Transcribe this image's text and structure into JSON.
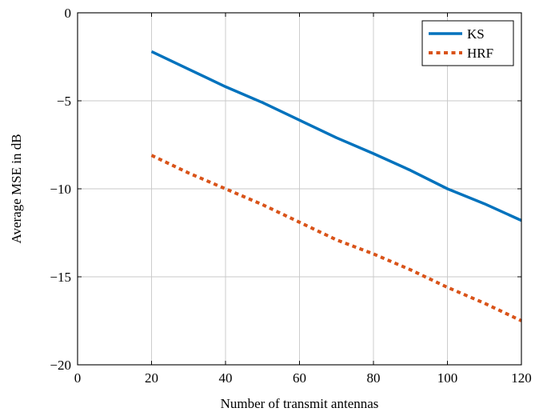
{
  "chart_data": {
    "type": "line",
    "title": "",
    "xlabel": "Number of transmit antennas",
    "ylabel": "Average MSE in dB",
    "xlim": [
      0,
      120
    ],
    "ylim": [
      -20,
      0
    ],
    "xticks": [
      0,
      20,
      40,
      60,
      80,
      100,
      120
    ],
    "yticks": [
      0,
      -5,
      -10,
      -15,
      -20
    ],
    "ytick_labels": [
      "0",
      "−5",
      "−10",
      "−15",
      "−20"
    ],
    "grid": true,
    "legend_position": "top-right",
    "series": [
      {
        "name": "KS",
        "color": "#0072bd",
        "style": "solid",
        "x": [
          20,
          30,
          40,
          50,
          60,
          70,
          80,
          90,
          100,
          110,
          120
        ],
        "y": [
          -2.2,
          -3.2,
          -4.2,
          -5.1,
          -6.1,
          -7.1,
          -8.0,
          -8.95,
          -10.0,
          -10.85,
          -11.8
        ]
      },
      {
        "name": "HRF",
        "color": "#d95319",
        "style": "dashed",
        "x": [
          20,
          30,
          40,
          50,
          60,
          70,
          80,
          90,
          100,
          110,
          120
        ],
        "y": [
          -8.1,
          -9.1,
          -10.0,
          -10.9,
          -11.9,
          -12.9,
          -13.7,
          -14.6,
          -15.6,
          -16.5,
          -17.5
        ]
      }
    ]
  }
}
